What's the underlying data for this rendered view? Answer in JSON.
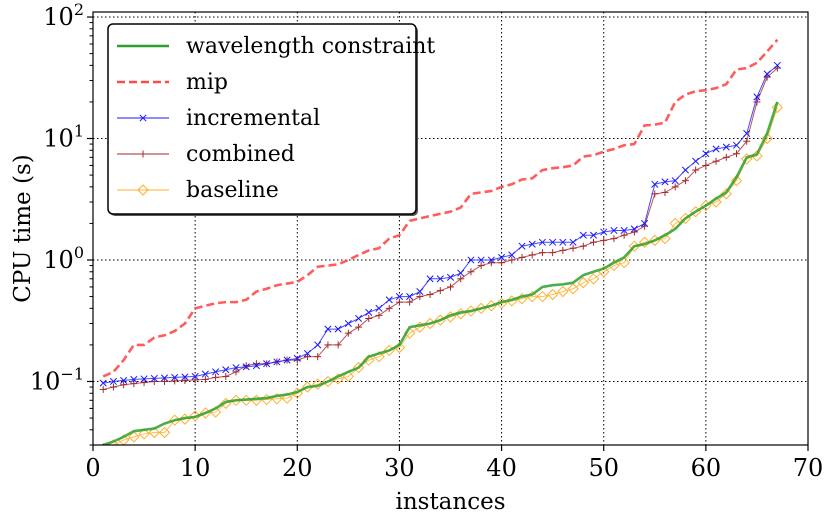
{
  "chart_data": {
    "type": "line",
    "xlabel": "instances",
    "ylabel": "CPU time (s)",
    "xlim": [
      0,
      70
    ],
    "ylim": [
      0.03,
      110
    ],
    "yscale": "log",
    "grid": true,
    "legend_position": "top-left",
    "x_ticks": [
      "0",
      "10",
      "20",
      "30",
      "40",
      "50",
      "60",
      "70"
    ],
    "y_ticks": [
      {
        "value": 0.1,
        "base": "10",
        "exp": "−1"
      },
      {
        "value": 1,
        "base": "10",
        "exp": "0"
      },
      {
        "value": 10,
        "base": "10",
        "exp": "1"
      },
      {
        "value": 100,
        "base": "10",
        "exp": "2"
      }
    ],
    "series": [
      {
        "name": "wavelength constraint",
        "color": "#2ca02c",
        "style": "solid",
        "marker": "none",
        "x": [
          1,
          2,
          3,
          4,
          5,
          6,
          7,
          8,
          9,
          10,
          11,
          12,
          13,
          14,
          15,
          16,
          17,
          18,
          19,
          20,
          21,
          22,
          23,
          24,
          25,
          26,
          27,
          28,
          29,
          30,
          31,
          32,
          33,
          34,
          35,
          36,
          37,
          38,
          39,
          40,
          41,
          42,
          43,
          44,
          45,
          46,
          47,
          48,
          49,
          50,
          51,
          52,
          53,
          54,
          55,
          56,
          57,
          58,
          59,
          60,
          61,
          62,
          63,
          64,
          65,
          66,
          67
        ],
        "y": [
          0.03,
          0.032,
          0.035,
          0.039,
          0.04,
          0.041,
          0.045,
          0.048,
          0.05,
          0.051,
          0.055,
          0.06,
          0.068,
          0.07,
          0.071,
          0.072,
          0.073,
          0.076,
          0.078,
          0.082,
          0.09,
          0.092,
          0.1,
          0.11,
          0.12,
          0.13,
          0.16,
          0.17,
          0.18,
          0.2,
          0.28,
          0.29,
          0.3,
          0.32,
          0.35,
          0.37,
          0.38,
          0.4,
          0.42,
          0.45,
          0.47,
          0.5,
          0.52,
          0.6,
          0.62,
          0.63,
          0.65,
          0.75,
          0.8,
          0.85,
          0.95,
          1.05,
          1.3,
          1.35,
          1.45,
          1.6,
          1.8,
          2.2,
          2.5,
          2.8,
          3.2,
          3.6,
          4.8,
          7.0,
          7.4,
          11.0,
          20.0
        ]
      },
      {
        "name": "mip",
        "color": "#ff4a4a",
        "style": "dashed",
        "marker": "none",
        "x": [
          1,
          2,
          3,
          4,
          5,
          6,
          7,
          8,
          9,
          10,
          11,
          12,
          13,
          14,
          15,
          16,
          17,
          18,
          19,
          20,
          21,
          22,
          23,
          24,
          25,
          26,
          27,
          28,
          29,
          30,
          31,
          32,
          33,
          34,
          35,
          36,
          37,
          38,
          39,
          40,
          41,
          42,
          43,
          44,
          45,
          46,
          47,
          48,
          49,
          50,
          51,
          52,
          53,
          54,
          55,
          56,
          57,
          58,
          59,
          60,
          61,
          62,
          63,
          64,
          65,
          66,
          67
        ],
        "y": [
          0.11,
          0.12,
          0.15,
          0.2,
          0.2,
          0.23,
          0.24,
          0.26,
          0.3,
          0.4,
          0.42,
          0.44,
          0.45,
          0.45,
          0.47,
          0.55,
          0.58,
          0.62,
          0.64,
          0.66,
          0.75,
          0.88,
          0.9,
          0.92,
          1.0,
          1.1,
          1.2,
          1.25,
          1.5,
          1.6,
          2.1,
          2.2,
          2.3,
          2.4,
          2.5,
          2.7,
          3.5,
          3.6,
          3.7,
          4.0,
          4.2,
          4.6,
          4.7,
          5.5,
          5.7,
          5.8,
          6.0,
          7.1,
          7.3,
          7.8,
          8.2,
          8.8,
          9.0,
          12.8,
          13.0,
          13.5,
          20.0,
          23.0,
          24.5,
          25.0,
          26.0,
          28.0,
          37.0,
          38.0,
          42.0,
          52.0,
          65.0
        ]
      },
      {
        "name": "incremental",
        "color": "#1a1aff",
        "style": "solid",
        "marker": "x",
        "x": [
          1,
          2,
          3,
          4,
          5,
          6,
          7,
          8,
          9,
          10,
          11,
          12,
          13,
          14,
          15,
          16,
          17,
          18,
          19,
          20,
          21,
          22,
          23,
          24,
          25,
          26,
          27,
          28,
          29,
          30,
          31,
          32,
          33,
          34,
          35,
          36,
          37,
          38,
          39,
          40,
          41,
          42,
          43,
          44,
          45,
          46,
          47,
          48,
          49,
          50,
          51,
          52,
          53,
          54,
          55,
          56,
          57,
          58,
          59,
          60,
          61,
          62,
          63,
          64,
          65,
          66,
          67
        ],
        "y": [
          0.097,
          0.1,
          0.102,
          0.104,
          0.105,
          0.106,
          0.107,
          0.108,
          0.109,
          0.11,
          0.115,
          0.12,
          0.125,
          0.13,
          0.132,
          0.135,
          0.14,
          0.145,
          0.15,
          0.155,
          0.17,
          0.2,
          0.27,
          0.27,
          0.3,
          0.33,
          0.37,
          0.4,
          0.47,
          0.5,
          0.5,
          0.55,
          0.7,
          0.7,
          0.72,
          0.78,
          1.0,
          1.0,
          1.0,
          1.05,
          1.1,
          1.3,
          1.35,
          1.4,
          1.4,
          1.4,
          1.4,
          1.6,
          1.6,
          1.7,
          1.75,
          1.75,
          1.8,
          2.0,
          4.2,
          4.4,
          4.5,
          5.5,
          6.5,
          7.5,
          8.2,
          8.5,
          8.8,
          11.0,
          22.0,
          34.0,
          40.0
        ]
      },
      {
        "name": "combined",
        "color": "#a52a2a",
        "style": "solid",
        "marker": "+",
        "x": [
          1,
          2,
          3,
          4,
          5,
          6,
          7,
          8,
          9,
          10,
          11,
          12,
          13,
          14,
          15,
          16,
          17,
          18,
          19,
          20,
          21,
          22,
          23,
          24,
          25,
          26,
          27,
          28,
          29,
          30,
          31,
          32,
          33,
          34,
          35,
          36,
          37,
          38,
          39,
          40,
          41,
          42,
          43,
          44,
          45,
          46,
          47,
          48,
          49,
          50,
          51,
          52,
          53,
          54,
          55,
          56,
          57,
          58,
          59,
          60,
          61,
          62,
          63,
          64,
          65,
          66,
          67
        ],
        "y": [
          0.086,
          0.09,
          0.094,
          0.096,
          0.098,
          0.1,
          0.1,
          0.101,
          0.102,
          0.103,
          0.104,
          0.108,
          0.11,
          0.12,
          0.135,
          0.14,
          0.14,
          0.145,
          0.15,
          0.15,
          0.16,
          0.16,
          0.2,
          0.2,
          0.25,
          0.28,
          0.33,
          0.35,
          0.4,
          0.45,
          0.45,
          0.5,
          0.52,
          0.56,
          0.6,
          0.7,
          0.8,
          0.9,
          0.95,
          0.95,
          1.0,
          1.05,
          1.1,
          1.15,
          1.15,
          1.2,
          1.25,
          1.3,
          1.4,
          1.45,
          1.5,
          1.6,
          1.7,
          1.9,
          3.5,
          3.6,
          4.0,
          4.5,
          5.5,
          6.0,
          6.5,
          7.0,
          7.5,
          9.5,
          20.0,
          32.0,
          38.0
        ]
      },
      {
        "name": "baseline",
        "color": "#ffb030",
        "style": "solid",
        "marker": "diamond",
        "x": [
          1,
          2,
          3,
          4,
          5,
          6,
          7,
          8,
          9,
          10,
          11,
          12,
          13,
          14,
          15,
          16,
          17,
          18,
          19,
          20,
          21,
          22,
          23,
          24,
          25,
          26,
          27,
          28,
          29,
          30,
          31,
          32,
          33,
          34,
          35,
          36,
          37,
          38,
          39,
          40,
          41,
          42,
          43,
          44,
          45,
          46,
          47,
          48,
          49,
          50,
          51,
          52,
          53,
          54,
          55,
          56,
          57,
          58,
          59,
          60,
          61,
          62,
          63,
          64,
          65,
          66,
          67
        ],
        "y": [
          0.028,
          0.03,
          0.033,
          0.035,
          0.037,
          0.038,
          0.038,
          0.048,
          0.049,
          0.052,
          0.055,
          0.056,
          0.066,
          0.07,
          0.07,
          0.07,
          0.071,
          0.072,
          0.073,
          0.08,
          0.09,
          0.095,
          0.1,
          0.105,
          0.11,
          0.13,
          0.15,
          0.16,
          0.18,
          0.19,
          0.25,
          0.28,
          0.3,
          0.32,
          0.34,
          0.36,
          0.38,
          0.4,
          0.42,
          0.44,
          0.46,
          0.48,
          0.5,
          0.5,
          0.52,
          0.55,
          0.58,
          0.65,
          0.7,
          0.8,
          0.9,
          0.95,
          1.3,
          1.4,
          1.45,
          1.5,
          2.0,
          2.2,
          2.5,
          2.8,
          3.0,
          3.5,
          4.5,
          6.8,
          7.2,
          10.0,
          18.0
        ]
      }
    ]
  }
}
